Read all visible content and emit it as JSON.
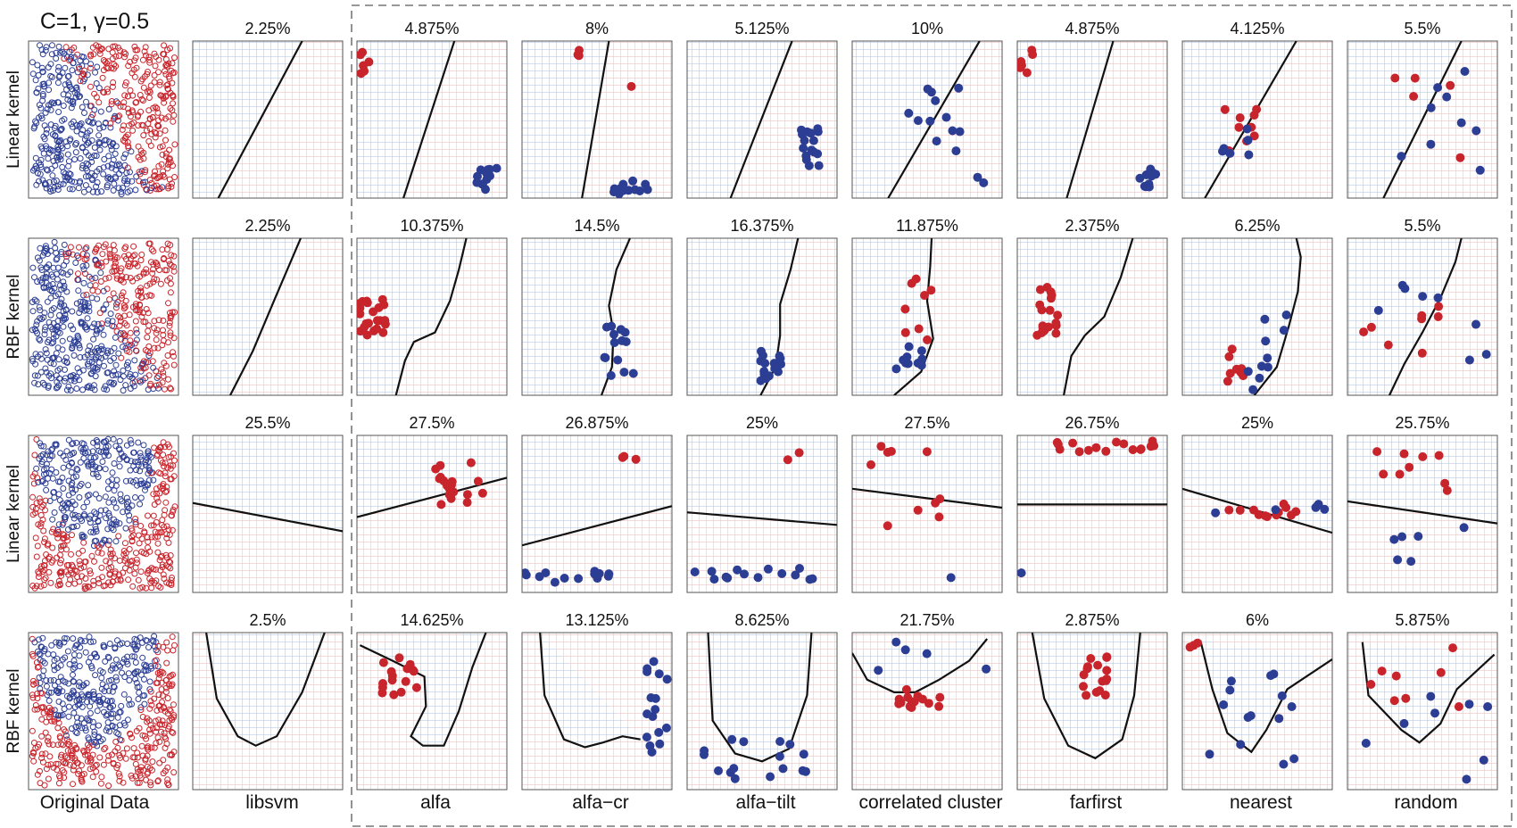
{
  "figure": {
    "params_label": "C=1, γ=0.5",
    "row_labels": [
      "Linear kernel",
      "RBF kernel",
      "Linear kernel",
      "RBF kernel"
    ],
    "column_labels": [
      "Original Data",
      "libsvm",
      "alfa",
      "alfa−cr",
      "alfa−tilt",
      "correlated cluster",
      "farfirst",
      "nearest",
      "random"
    ]
  },
  "colors": {
    "class_pos": "#c8242b",
    "class_neg": "#2c3e94",
    "grid_blue": "#a9bfe0",
    "grid_red": "#eeb4b4",
    "boundary": "#111111",
    "dashed_box": "#777777"
  },
  "chart_data": {
    "type": "grid",
    "columns": [
      "libsvm",
      "alfa",
      "alfa−cr",
      "alfa−tilt",
      "correlated cluster",
      "farfirst",
      "nearest",
      "random"
    ],
    "rows": [
      {
        "label": "Linear kernel",
        "dataset": 1,
        "error_rates": [
          "2.25%",
          "4.875%",
          "8%",
          "5.125%",
          "10%",
          "4.875%",
          "4.125%",
          "5.5%"
        ]
      },
      {
        "label": "RBF kernel",
        "dataset": 1,
        "error_rates": [
          "2.25%",
          "10.375%",
          "14.5%",
          "16.375%",
          "11.875%",
          "2.375%",
          "6.25%",
          "5.5%"
        ]
      },
      {
        "label": "Linear kernel",
        "dataset": 2,
        "error_rates": [
          "25.5%",
          "27.5%",
          "26.875%",
          "25%",
          "27.5%",
          "26.75%",
          "25%",
          "25.75%"
        ]
      },
      {
        "label": "RBF kernel",
        "dataset": 2,
        "error_rates": [
          "2.5%",
          "14.625%",
          "13.125%",
          "8.625%",
          "21.75%",
          "2.875%",
          "6%",
          "5.875%"
        ]
      }
    ]
  }
}
